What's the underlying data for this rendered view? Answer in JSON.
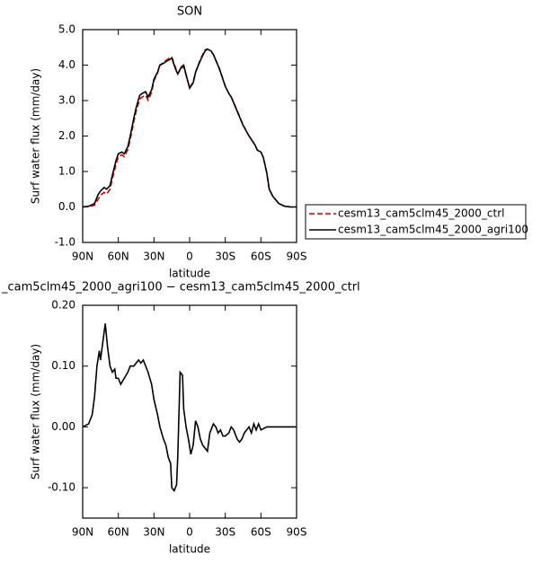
{
  "chart_data": [
    {
      "type": "line",
      "title": "SON",
      "xlabel": "latitude",
      "ylabel": "Surf water flux (mm/day)",
      "x": [
        90,
        85,
        80,
        77,
        75,
        72,
        70,
        67,
        65,
        62,
        60,
        57,
        55,
        52,
        50,
        47,
        45,
        42,
        40,
        37,
        35,
        32,
        30,
        27,
        25,
        22,
        20,
        17,
        15,
        12,
        10,
        7,
        5,
        2,
        0,
        -3,
        -5,
        -8,
        -10,
        -13,
        -15,
        -18,
        -20,
        -25,
        -30,
        -33,
        -35,
        -40,
        -45,
        -50,
        -55,
        -57,
        -60,
        -62,
        -65,
        -67,
        -70,
        -75,
        -80,
        -85,
        -90
      ],
      "series": [
        {
          "name": "cesm13_cam5clm45_2000_ctrl",
          "color": "#cc0000",
          "dash": "dashed",
          "values": [
            0.0,
            0.01,
            0.05,
            0.22,
            0.33,
            0.41,
            0.36,
            0.5,
            0.8,
            1.2,
            1.42,
            1.47,
            1.42,
            1.62,
            1.9,
            2.4,
            2.7,
            3.04,
            3.1,
            3.15,
            3.01,
            3.23,
            3.56,
            3.78,
            4.0,
            4.07,
            4.13,
            4.2,
            4.23,
            3.94,
            3.76,
            3.9,
            3.96,
            3.6,
            3.37,
            3.53,
            3.79,
            4.07,
            4.23,
            4.43,
            4.45,
            4.39,
            4.29,
            3.91,
            3.41,
            3.2,
            3.1,
            2.72,
            2.31,
            2.0,
            1.75,
            1.6,
            1.55,
            1.4,
            0.95,
            0.5,
            0.3,
            0.1,
            0.02,
            0.0,
            0.0
          ]
        },
        {
          "name": "cesm13_cam5clm45_2000_agri100",
          "color": "#000000",
          "dash": "solid",
          "values": [
            0.0,
            0.02,
            0.1,
            0.35,
            0.45,
            0.55,
            0.5,
            0.6,
            0.9,
            1.3,
            1.5,
            1.55,
            1.5,
            1.7,
            2.0,
            2.5,
            2.8,
            3.15,
            3.2,
            3.25,
            3.1,
            3.3,
            3.6,
            3.8,
            4.0,
            4.05,
            4.1,
            4.15,
            4.2,
            3.9,
            3.75,
            3.95,
            4.0,
            3.6,
            3.35,
            3.5,
            3.8,
            4.05,
            4.2,
            4.4,
            4.45,
            4.4,
            4.3,
            3.9,
            3.4,
            3.2,
            3.1,
            2.7,
            2.3,
            2.0,
            1.75,
            1.6,
            1.55,
            1.4,
            0.95,
            0.5,
            0.3,
            0.1,
            0.02,
            0.0,
            0.0
          ]
        }
      ],
      "xlim": [
        90,
        -90
      ],
      "xticks": [
        {
          "value": 90,
          "label": "90N"
        },
        {
          "value": 60,
          "label": "60N"
        },
        {
          "value": 30,
          "label": "30N"
        },
        0,
        {
          "value": -30,
          "label": "30S"
        },
        {
          "value": -60,
          "label": "60S"
        },
        {
          "value": -90,
          "label": "90S"
        }
      ],
      "ylim": [
        -1,
        5
      ],
      "yticks": [
        {
          "value": -1,
          "label": "-1.0"
        },
        {
          "value": 0,
          "label": "0.0"
        },
        {
          "value": 1,
          "label": "1.0"
        },
        {
          "value": 2,
          "label": "2.0"
        },
        {
          "value": 3,
          "label": "3.0"
        },
        {
          "value": 4,
          "label": "4.0"
        },
        {
          "value": 5,
          "label": "5.0"
        }
      ],
      "legend": "outside-right"
    },
    {
      "type": "line",
      "title": "_cam5clm45_2000_agri100 − cesm13_cam5clm45_2000_ctrl",
      "xlabel": "latitude",
      "ylabel": "Surf water flux (mm/day)",
      "x": [
        90,
        85,
        82,
        80,
        78,
        76,
        75,
        73,
        71,
        69,
        67,
        65,
        63,
        62,
        60,
        58,
        55,
        52,
        50,
        47,
        45,
        43,
        41,
        39,
        37,
        35,
        32,
        30,
        27,
        25,
        22,
        20,
        18,
        16,
        15,
        13,
        11,
        10,
        8,
        6,
        5,
        3,
        1,
        -1,
        -3,
        -5,
        -7,
        -9,
        -11,
        -13,
        -15,
        -17,
        -20,
        -22,
        -24,
        -26,
        -28,
        -30,
        -33,
        -35,
        -37,
        -40,
        -42,
        -44,
        -46,
        -48,
        -50,
        -52,
        -54,
        -56,
        -58,
        -60,
        -65,
        -90
      ],
      "series": [
        {
          "color": "#000000",
          "dash": "solid",
          "values": [
            0.0,
            0.005,
            0.02,
            0.05,
            0.1,
            0.125,
            0.11,
            0.14,
            0.17,
            0.13,
            0.1,
            0.09,
            0.095,
            0.08,
            0.08,
            0.07,
            0.08,
            0.09,
            0.1,
            0.1,
            0.105,
            0.11,
            0.105,
            0.11,
            0.1,
            0.09,
            0.07,
            0.045,
            0.02,
            0.0,
            -0.02,
            -0.03,
            -0.05,
            -0.06,
            -0.1,
            -0.105,
            -0.095,
            -0.05,
            0.09,
            0.085,
            0.03,
            0.0,
            -0.02,
            -0.045,
            -0.03,
            0.01,
            0.0,
            -0.02,
            -0.03,
            -0.035,
            -0.04,
            -0.01,
            0.005,
            0.0,
            -0.01,
            -0.005,
            -0.015,
            -0.015,
            -0.01,
            0.0,
            -0.005,
            -0.02,
            -0.025,
            -0.02,
            -0.01,
            -0.005,
            0.0,
            -0.01,
            0.005,
            -0.005,
            0.005,
            -0.005,
            0.0,
            0.0
          ]
        }
      ],
      "xlim": [
        90,
        -90
      ],
      "xticks": [
        {
          "value": 90,
          "label": "90N"
        },
        {
          "value": 60,
          "label": "60N"
        },
        {
          "value": 30,
          "label": "30N"
        },
        0,
        {
          "value": -30,
          "label": "30S"
        },
        {
          "value": -60,
          "label": "60S"
        },
        {
          "value": -90,
          "label": "90S"
        }
      ],
      "ylim": [
        -0.15,
        0.2
      ],
      "yticks": [
        {
          "value": -0.1,
          "label": "-0.10"
        },
        {
          "value": 0,
          "label": "0.00"
        },
        {
          "value": 0.1,
          "label": "0.10"
        },
        {
          "value": 0.2,
          "label": "0.20"
        }
      ]
    }
  ]
}
